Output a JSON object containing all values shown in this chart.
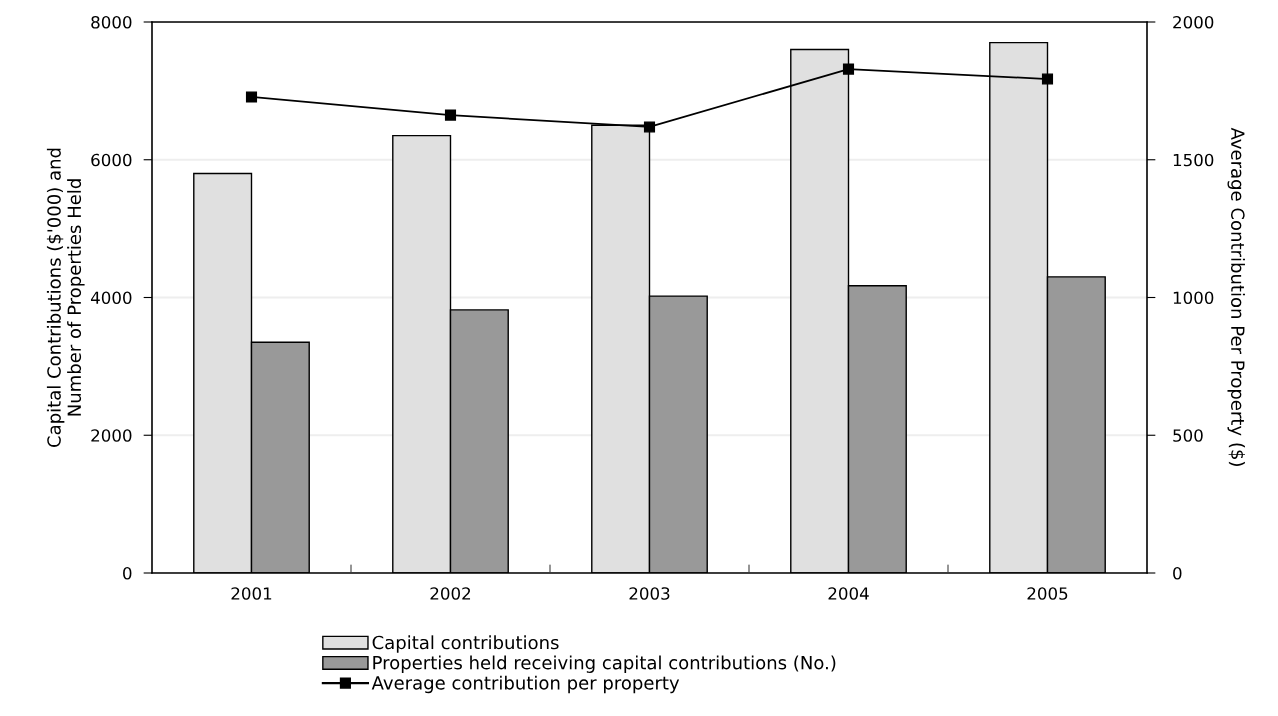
{
  "chart_data": {
    "type": "bar",
    "categories": [
      "2001",
      "2002",
      "2003",
      "2004",
      "2005"
    ],
    "ylabel": "Capital Contributions ($'000) and\nNumber of Properties Held",
    "y2label": "Average Contribution Per Property ($)",
    "series": [
      {
        "name": "Capital contributions",
        "color": "#e0e0e0",
        "values": [
          5800,
          6350,
          6500,
          7600,
          7700
        ]
      },
      {
        "name": "Properties held receiving capital contributions (No.)",
        "color": "#999999",
        "values": [
          3350,
          3820,
          4020,
          4170,
          4300
        ]
      },
      {
        "name": "Average contribution per property",
        "type": "line",
        "axis": "y2",
        "color": "#000000",
        "marker": "square",
        "values": [
          1728,
          1662,
          1619,
          1829,
          1793
        ]
      }
    ],
    "ylim": [
      0,
      8000
    ],
    "yticks": [
      0,
      2000,
      4000,
      6000,
      8000
    ],
    "y2lim": [
      0,
      2000
    ],
    "y2ticks": [
      0,
      500,
      1000,
      1500,
      2000
    ],
    "grid": "y",
    "legend": "bottom"
  }
}
